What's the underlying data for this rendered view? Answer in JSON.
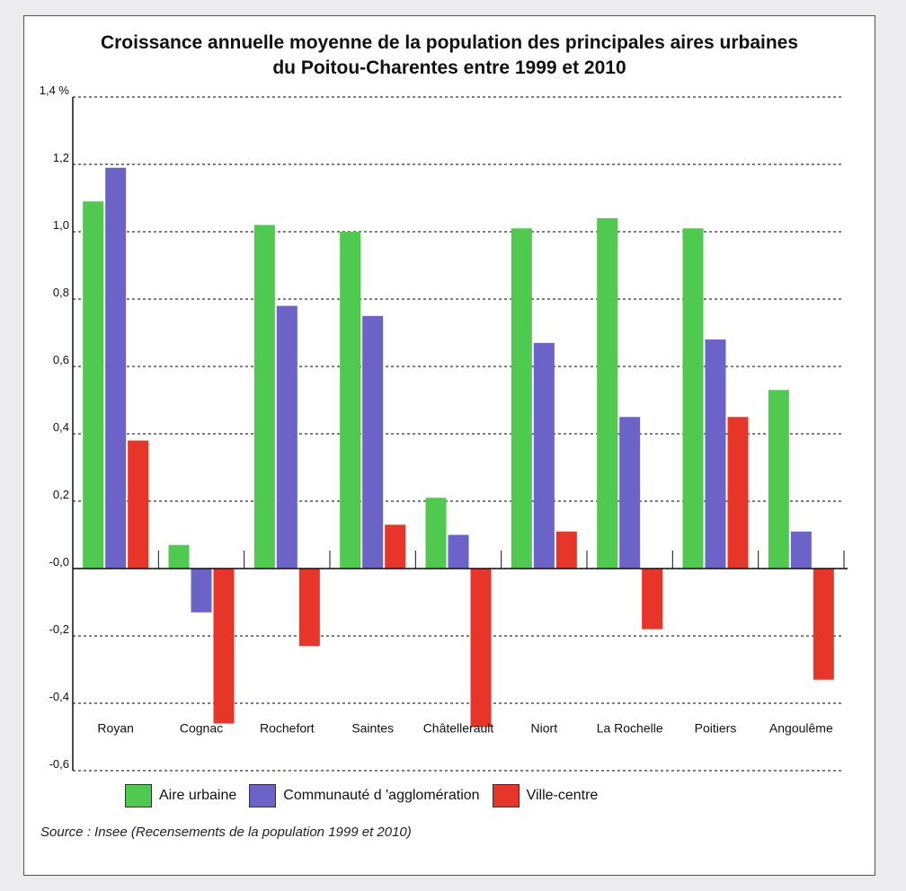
{
  "chart_data": {
    "type": "bar",
    "title_line1": "Croissance annuelle moyenne de la population des principales aires urbaines",
    "title_line2": "du Poitou-Charentes entre 1999 et 2010",
    "categories": [
      "Royan",
      "Cognac",
      "Rochefort",
      "Saintes",
      "Châtellerault",
      "Niort",
      "La Rochelle",
      "Poitiers",
      "Angoulême"
    ],
    "series": [
      {
        "name": "Aire urbaine",
        "color": "#4fc94f",
        "values": [
          1.09,
          0.07,
          1.02,
          1.0,
          0.21,
          1.01,
          1.04,
          1.01,
          0.53
        ]
      },
      {
        "name": "Communauté d 'agglomération",
        "color": "#6b63c8",
        "values": [
          1.19,
          -0.13,
          0.78,
          0.75,
          0.1,
          0.67,
          0.45,
          0.68,
          0.11
        ]
      },
      {
        "name": "Ville-centre",
        "color": "#e8352a",
        "values": [
          0.38,
          -0.46,
          -0.23,
          0.13,
          -0.47,
          0.11,
          -0.18,
          0.45,
          -0.33
        ]
      }
    ],
    "ylim": [
      -0.6,
      1.4
    ],
    "ytick_values": [
      1.4,
      1.2,
      1.0,
      0.8,
      0.6,
      0.4,
      0.2,
      0.0,
      -0.2,
      -0.4,
      -0.6
    ],
    "ytick_labels": [
      "1,4 %",
      "1,2",
      "1,0",
      "0,8",
      "0,6",
      "0,4",
      "0,2",
      "-0,0",
      "-0,2",
      "-0,4",
      "-0,6"
    ],
    "grid": true,
    "legend_position": "bottom"
  },
  "source": "Source : Insee (Recensements de la population 1999 et 2010)"
}
